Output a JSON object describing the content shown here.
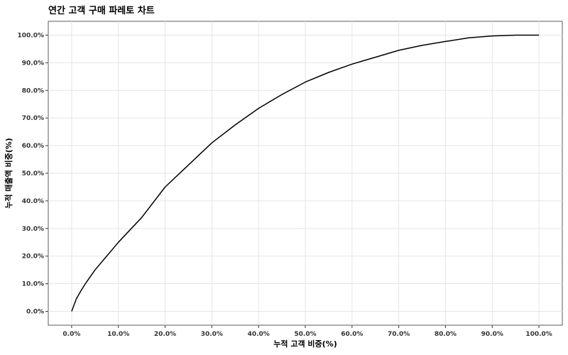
{
  "chart_data": {
    "type": "line",
    "title": "연간 고객 구매 파레토 차트",
    "xlabel": "누적 고객 비중(%)",
    "ylabel": "누적 매출액 비중(%)",
    "xlim": [
      -5,
      105
    ],
    "ylim": [
      -5,
      105
    ],
    "x_ticks": [
      0,
      10,
      20,
      30,
      40,
      50,
      60,
      70,
      80,
      90,
      100
    ],
    "x_tick_labels": [
      "0.0%",
      "10.0%",
      "20.0%",
      "30.0%",
      "40.0%",
      "50.0%",
      "60.0%",
      "70.0%",
      "80.0%",
      "90.0%",
      "100.0%"
    ],
    "y_ticks": [
      0,
      10,
      20,
      30,
      40,
      50,
      60,
      70,
      80,
      90,
      100
    ],
    "y_tick_labels": [
      "0.0%",
      "10.0%",
      "20.0%",
      "30.0%",
      "40.0%",
      "50.0%",
      "60.0%",
      "70.0%",
      "80.0%",
      "90.0%",
      "100.0%"
    ],
    "grid": true,
    "line_color": "#000000",
    "grid_color": "#e5e5e5",
    "series": [
      {
        "x": [
          0,
          1,
          2,
          3,
          5,
          7,
          10,
          15,
          20,
          25,
          30,
          35,
          40,
          45,
          50,
          55,
          60,
          65,
          70,
          75,
          80,
          85,
          90,
          95,
          100
        ],
        "y": [
          0,
          4.5,
          7.5,
          10.2,
          15.0,
          19.0,
          25.0,
          34.0,
          45.0,
          53.0,
          61.0,
          67.5,
          73.5,
          78.5,
          83.0,
          86.5,
          89.5,
          92.0,
          94.5,
          96.3,
          97.7,
          99.0,
          99.7,
          100.0,
          100.0
        ]
      }
    ]
  }
}
